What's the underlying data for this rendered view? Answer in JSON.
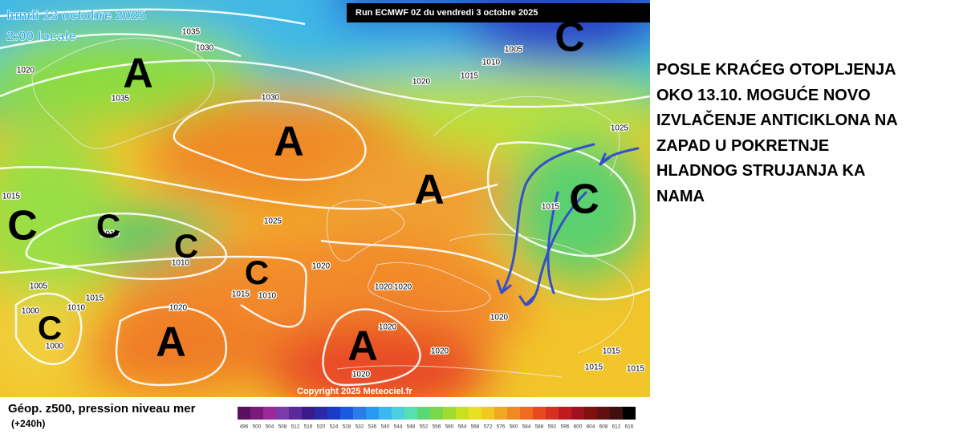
{
  "map": {
    "date": "lundi 13 octobre 2025",
    "time": "2:00 locale",
    "run": "Run ECMWF 0Z du vendredi 3 octobre 2025",
    "copyright": "Copyright 2025 Meteociel.fr",
    "isobar_labels": [
      "1035",
      "1030",
      "1020",
      "1035",
      "1030",
      "1020",
      "1015",
      "1010",
      "1005",
      "1025",
      "1015",
      "1025",
      "1010",
      "1010",
      "1020",
      "1015",
      "1010",
      "1005",
      "1010",
      "1015",
      "1000",
      "1000",
      "1020",
      "1020",
      "1020",
      "1020",
      "1020",
      "1020",
      "1020",
      "1015",
      "1015",
      "1015",
      "1015"
    ],
    "systems": [
      "A",
      "A",
      "A",
      "A",
      "A",
      "C",
      "C",
      "C",
      "C",
      "C",
      "C",
      "C"
    ]
  },
  "legend": {
    "title": "Géop. z500, pression niveau mer",
    "lead": "(+240h)",
    "scale": [
      "496",
      "500",
      "504",
      "508",
      "512",
      "516",
      "520",
      "524",
      "528",
      "532",
      "536",
      "540",
      "544",
      "548",
      "552",
      "556",
      "560",
      "564",
      "568",
      "572",
      "576",
      "580",
      "584",
      "588",
      "592",
      "596",
      "600",
      "604",
      "608",
      "612",
      "616"
    ]
  },
  "note": {
    "lines": [
      "POSLE KRAĆEG OTOPLJENJA",
      "OKO 13.10. MOGUĆE NOVO",
      "IZVLAČENJE ANTICIKLONA NA",
      "ZAPAD U POKRETNJE",
      "HLADNOG STRUJANJA KA",
      "NAMA"
    ]
  }
}
